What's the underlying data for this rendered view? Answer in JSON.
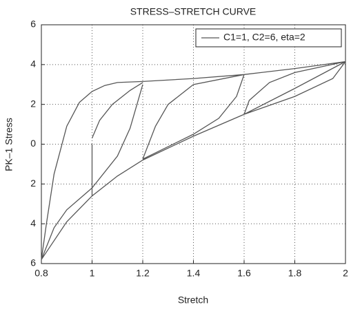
{
  "chart_data": {
    "type": "line",
    "title": "STRESS–STRETCH CURVE",
    "x_label": "Stretch",
    "y_label": "PK–1 Stress",
    "xlim": [
      0.8,
      2
    ],
    "ylim": [
      -6,
      6
    ],
    "xticks": [
      0.8,
      1,
      1.2,
      1.4,
      1.6,
      1.8,
      2
    ],
    "yticks": [
      {
        "value": -6,
        "label": "6"
      },
      {
        "value": -4,
        "label": "4"
      },
      {
        "value": -2,
        "label": "2"
      },
      0,
      2,
      4,
      6
    ],
    "grid": true,
    "legend": "upper right",
    "x": [
      0.8,
      0.82,
      0.85,
      0.9,
      0.95,
      1.0,
      1.05,
      1.1,
      1.2,
      1.4,
      1.6,
      1.8,
      2.0,
      null,
      2.0,
      1.8,
      1.6,
      1.4,
      1.2,
      1.1,
      1.0,
      0.9,
      0.8,
      null,
      0.8,
      0.85,
      0.9,
      1.0,
      1.1,
      1.15,
      1.2,
      null,
      1.0,
      1.0,
      null,
      1.0,
      1.03,
      1.08,
      1.15,
      1.2,
      null,
      1.2,
      1.25,
      1.3,
      1.4,
      1.6,
      null,
      1.2,
      1.4,
      1.5,
      1.57,
      1.6,
      null,
      1.6,
      1.62,
      1.7,
      1.8,
      2.0,
      null,
      1.6,
      1.8,
      1.95,
      2.0
    ],
    "series": [
      {
        "name": "C1=1, C2=6, eta=2",
        "color": "#555555",
        "values": [
          -5.8,
          -4,
          -1.5,
          0.9,
          2.1,
          2.65,
          2.95,
          3.1,
          3.15,
          3.3,
          3.5,
          3.8,
          4.15,
          null,
          4.15,
          2.8,
          1.5,
          0.4,
          -0.8,
          -1.6,
          -2.6,
          -3.9,
          -5.8,
          null,
          -5.8,
          -4.2,
          -3.3,
          -2.2,
          -0.6,
          0.8,
          3.0,
          null,
          -2.6,
          0,
          null,
          0.3,
          1.2,
          2.0,
          2.7,
          3.1,
          null,
          -0.75,
          0.9,
          2.0,
          3.0,
          3.5,
          null,
          -0.75,
          0.5,
          1.3,
          2.4,
          3.5,
          null,
          1.5,
          2.2,
          3.1,
          3.6,
          4.15,
          null,
          1.5,
          2.4,
          3.3,
          4.15
        ]
      }
    ]
  }
}
